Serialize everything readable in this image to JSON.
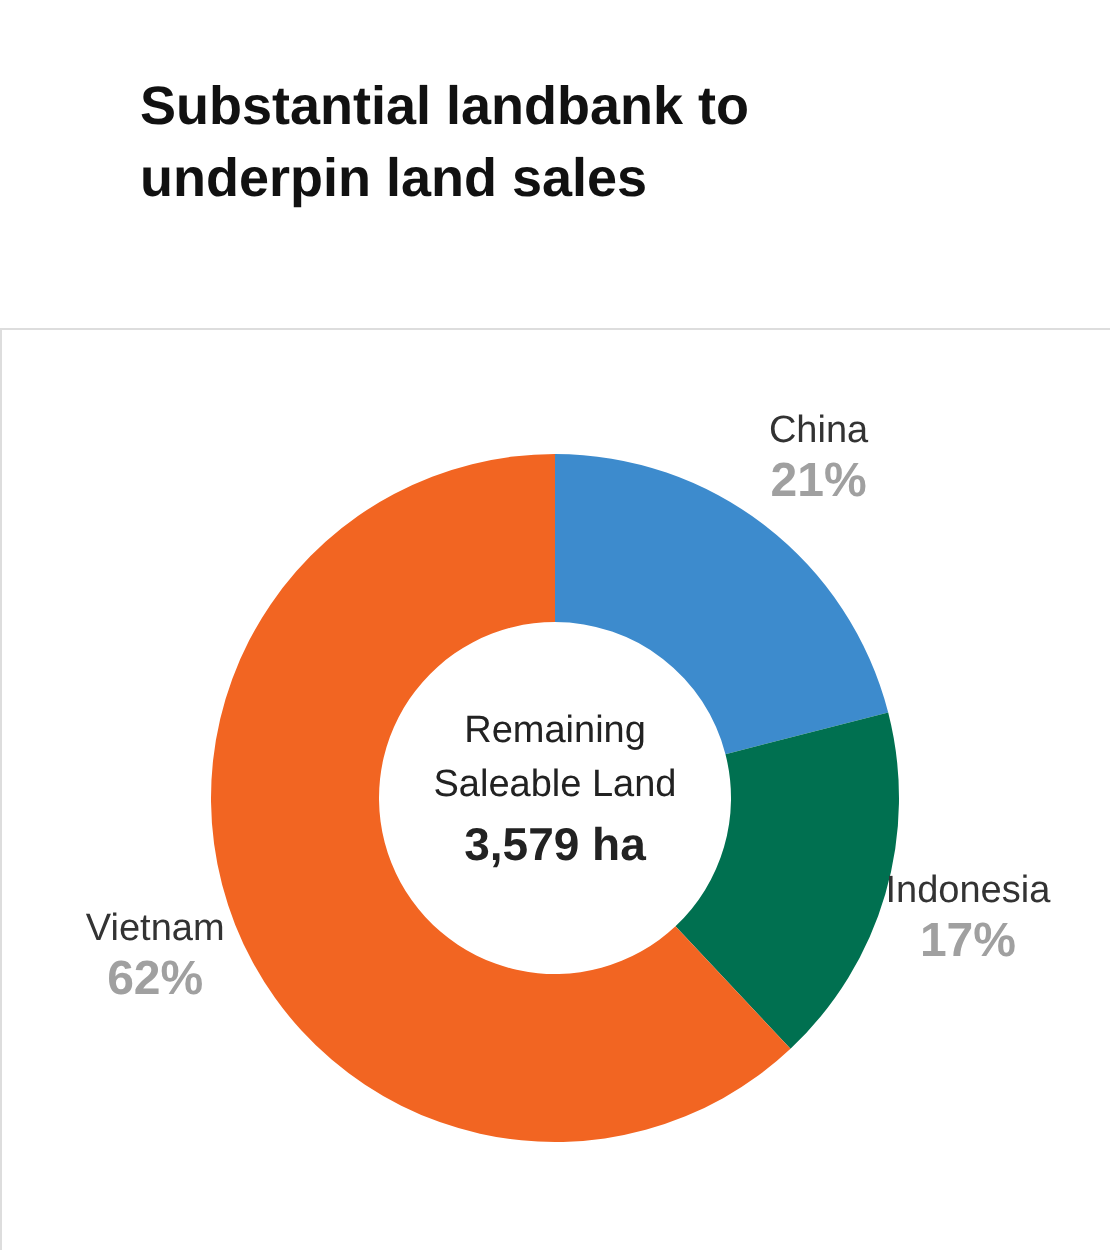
{
  "chart_data": {
    "type": "donut",
    "title": "Substantial landbank to underpin land sales",
    "categories": [
      "China",
      "Indonesia",
      "Vietnam"
    ],
    "values": [
      21,
      17,
      62
    ],
    "colors": [
      "#3d8bcd",
      "#007050",
      "#f26522"
    ],
    "value_labels": [
      "21%",
      "17%",
      "62%"
    ],
    "annotations": [
      "Remaining",
      "Saleable Land",
      "3,579 ha"
    ],
    "legend": false
  }
}
